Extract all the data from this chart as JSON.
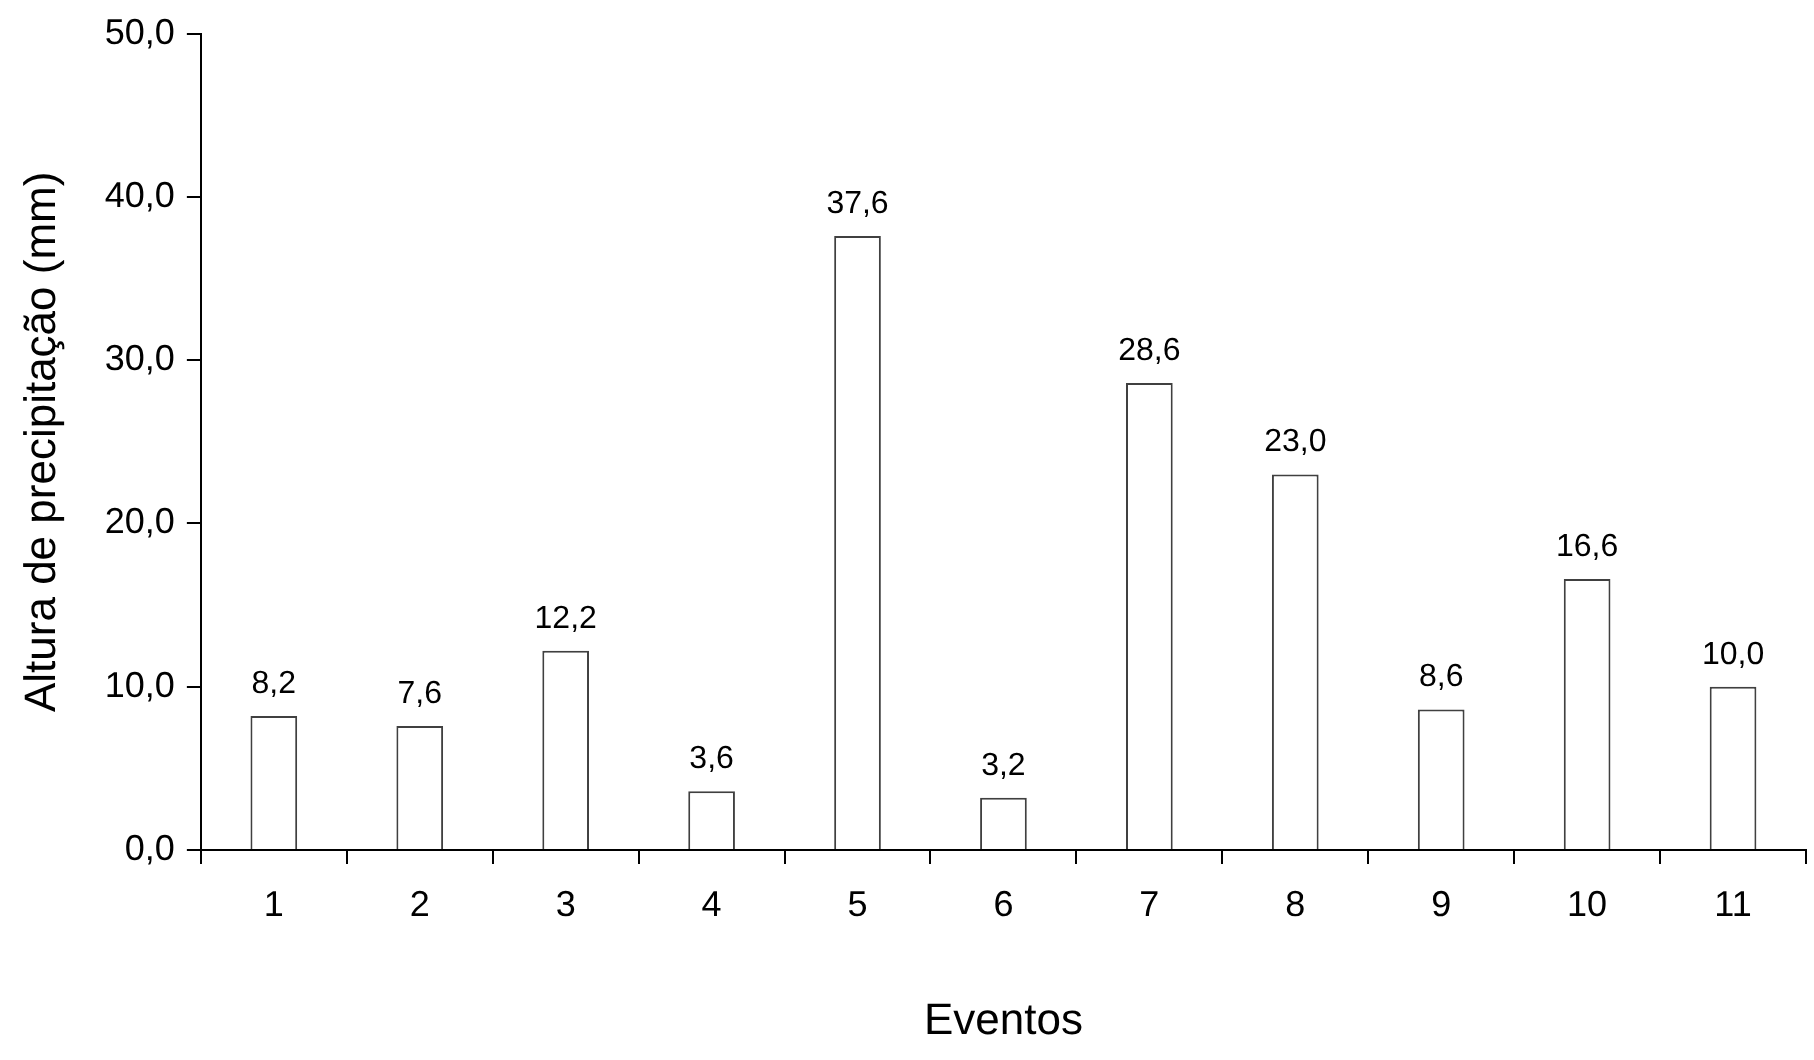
{
  "chart_data": {
    "type": "bar",
    "xlabel": "Eventos",
    "ylabel": "Altura de precipitação (mm)",
    "categories": [
      "1",
      "2",
      "3",
      "4",
      "5",
      "6",
      "7",
      "8",
      "9",
      "10",
      "11"
    ],
    "values": [
      8.2,
      7.6,
      12.2,
      3.6,
      37.6,
      3.2,
      28.6,
      23.0,
      8.6,
      16.6,
      10.0
    ],
    "value_labels": [
      "8,2",
      "7,6",
      "12,2",
      "3,6",
      "37,6",
      "3,2",
      "28,6",
      "23,0",
      "8,6",
      "16,6",
      "10,0"
    ],
    "color": "#ffffff",
    "ylim": [
      0,
      50
    ],
    "yticks": [
      {
        "value": 0,
        "label": "0,0"
      },
      {
        "value": 10,
        "label": "10,0"
      },
      {
        "value": 20,
        "label": "20,0"
      },
      {
        "value": 30,
        "label": "30,0"
      },
      {
        "value": 40,
        "label": "40,0"
      },
      {
        "value": 50,
        "label": "50,0"
      }
    ],
    "legend": false
  }
}
